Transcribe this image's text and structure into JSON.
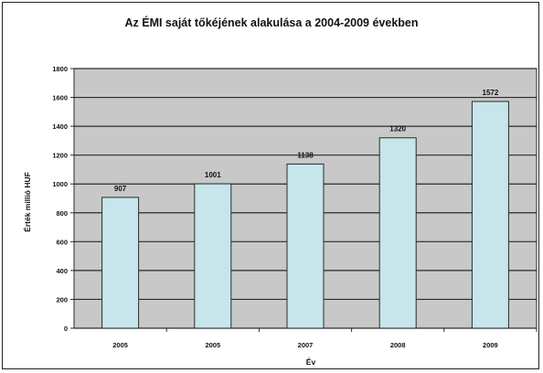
{
  "chart_data": {
    "type": "bar",
    "title": "Az ÉMI saját tőkéjének alakulása a 2004-2009 években",
    "xlabel": "Év",
    "ylabel": "Érték millió HUF",
    "categories": [
      "2005",
      "2005",
      "2007",
      "2008",
      "2009"
    ],
    "values": [
      907,
      1001,
      1138,
      1320,
      1572
    ],
    "data_labels": [
      "907",
      "1001",
      "1138",
      "1320",
      "1572"
    ],
    "ylim": [
      0,
      1800
    ],
    "yticks": [
      0,
      200,
      400,
      600,
      800,
      1000,
      1200,
      1400,
      1600,
      1800
    ],
    "grid": true,
    "legend": "none",
    "colors": {
      "bar_fill": "#c6e6ec",
      "bar_stroke": "#2b2b2b",
      "plot_background": "#c8c8c8",
      "gridline": "#2b2b2b"
    }
  }
}
